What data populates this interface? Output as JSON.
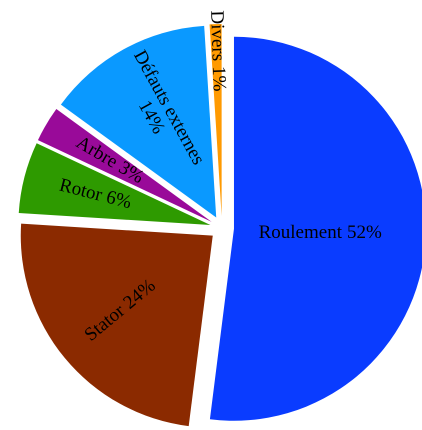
{
  "chart_data": {
    "type": "pie",
    "categories": [
      "Roulement",
      "Stator",
      "Rotor",
      "Arbre",
      "Défauts externes",
      "Divers"
    ],
    "values": [
      52,
      24,
      6,
      3,
      14,
      1
    ],
    "value_labels": [
      "52%",
      "24%",
      "6%",
      "3%",
      "14%",
      "1%"
    ],
    "colors": [
      "#0a3cff",
      "#8b2a00",
      "#2e9a00",
      "#990a99",
      "#0a99ff",
      "#ff9a00"
    ]
  }
}
